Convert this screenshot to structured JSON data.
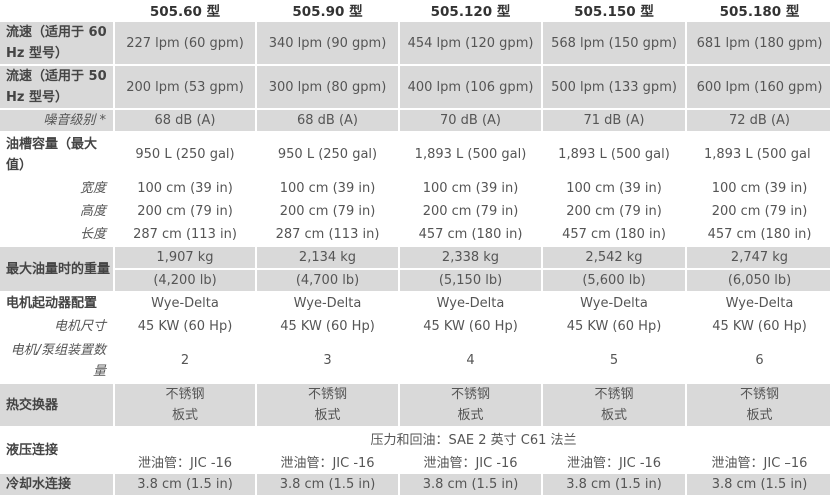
{
  "models": [
    "505.60 型",
    "505.90 型",
    "505.120 型",
    "505.150 型",
    "505.180 型"
  ],
  "rows": {
    "flow60": {
      "label": "流速（适用于 60 Hz 型号）",
      "values": [
        "227 lpm (60 gpm)",
        "340 lpm (90 gpm)",
        "454 lpm (120 gpm)",
        "568 lpm (150 gpm)",
        "681 lpm (180 gpm)"
      ]
    },
    "flow50": {
      "label": "流速（适用于 50 Hz 型号）",
      "values": [
        "200 lpm (53 gpm)",
        "300 lpm (80 gpm)",
        "400 lpm (106 gpm)",
        "500 lpm (133 gpm)",
        "600 lpm (160 gpm)"
      ]
    },
    "noise": {
      "label": "噪音级别 *",
      "values": [
        "68 dB (A)",
        "68 dB (A)",
        "70 dB (A)",
        "71 dB (A)",
        "72 dB (A)"
      ]
    },
    "tank": {
      "label": "油槽容量（最大值）",
      "values": [
        "950 L (250 gal)",
        "950 L (250 gal)",
        "1,893 L (500 gal)",
        "1,893 L (500 gal)",
        "1,893 L (500 gal"
      ]
    },
    "width": {
      "label": "宽度",
      "values": [
        "100 cm (39 in)",
        "100 cm (39 in)",
        "100 cm (39 in)",
        "100 cm (39 in)",
        "100 cm (39 in)"
      ]
    },
    "height": {
      "label": "高度",
      "values": [
        "200 cm (79 in)",
        "200 cm (79 in)",
        "200 cm (79 in)",
        "200 cm (79 in)",
        "200 cm (79 in)"
      ]
    },
    "length": {
      "label": "长度",
      "values": [
        "287 cm (113 in)",
        "287 cm (113 in)",
        "457 cm (180 in)",
        "457 cm (180 in)",
        "457 cm (180 in)"
      ]
    },
    "weight": {
      "label": "最大油量时的重量",
      "kg": [
        "1,907 kg",
        "2,134 kg",
        "2,338 kg",
        "2,542 kg",
        "2,747 kg"
      ],
      "lb": [
        "(4,200 lb)",
        "(4,700 lb)",
        "(5,150 lb)",
        "(5,600 lb)",
        "(6,050 lb)"
      ]
    },
    "starter": {
      "label": "电机起动器配置",
      "values": [
        "Wye-Delta",
        "Wye-Delta",
        "Wye-Delta",
        "Wye-Delta",
        "Wye-Delta"
      ]
    },
    "motor": {
      "label": "电机尺寸",
      "values": [
        "45 KW (60 Hp)",
        "45 KW (60 Hp)",
        "45 KW (60 Hp)",
        "45 KW (60 Hp)",
        "45 KW (60 Hp)"
      ]
    },
    "units": {
      "label": "电机/泵组装置数量",
      "values": [
        "2",
        "3",
        "4",
        "5",
        "6"
      ]
    },
    "hx": {
      "label": "热交换器",
      "line1": "不锈钢",
      "line2": "板式"
    },
    "hyd": {
      "label": "液压连接",
      "common": "压力和回油：SAE 2 英寸 C61 法兰",
      "values": [
        "泄油管：JIC -16",
        "泄油管：JIC -16",
        "泄油管：JIC -16",
        "泄油管：JIC -16",
        "泄油管：JIC –16"
      ]
    },
    "cool": {
      "label": "冷却水连接",
      "values": [
        "3.8 cm (1.5 in)",
        "3.8 cm (1.5 in)",
        "3.8 cm (1.5 in)",
        "3.8 cm (1.5 in)",
        "3.8 cm (1.5 in)"
      ]
    }
  }
}
